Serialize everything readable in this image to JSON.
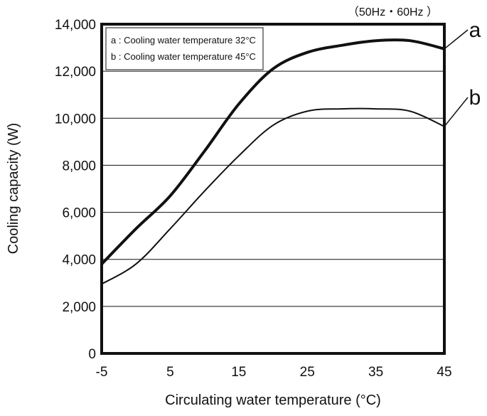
{
  "chart_data": {
    "type": "line",
    "frequency_note": "（50Hz・60Hz ）",
    "xlabel": "Circulating water temperature (°C)",
    "ylabel": "Cooling capacity (W)",
    "xlim": [
      -5,
      45
    ],
    "ylim": [
      0,
      14000
    ],
    "x_ticks": [
      -5,
      5,
      15,
      25,
      35,
      45
    ],
    "x_tick_labels": [
      "-5",
      "5",
      "15",
      "25",
      "35",
      "45"
    ],
    "y_ticks": [
      0,
      2000,
      4000,
      6000,
      8000,
      10000,
      12000,
      14000
    ],
    "y_tick_labels": [
      "0",
      "2,000",
      "4,000",
      "6,000",
      "8,000",
      "10,000",
      "12,000",
      "14,000"
    ],
    "grid": "horizontal",
    "legend_position": "top-left",
    "legend": [
      "a : Cooling water temperature 32°C",
      "b : Cooling water temperature 45°C"
    ],
    "series": [
      {
        "name": "a",
        "x": [
          -5,
          0,
          5,
          10,
          15,
          20,
          25,
          30,
          35,
          40,
          45
        ],
        "y": [
          3800,
          5300,
          6700,
          8600,
          10600,
          12100,
          12800,
          13100,
          13300,
          13300,
          12950
        ]
      },
      {
        "name": "b",
        "x": [
          -5,
          0,
          5,
          10,
          15,
          20,
          25,
          30,
          35,
          40,
          45
        ],
        "y": [
          2950,
          3800,
          5300,
          6900,
          8400,
          9700,
          10300,
          10400,
          10400,
          10300,
          9650
        ]
      }
    ]
  }
}
